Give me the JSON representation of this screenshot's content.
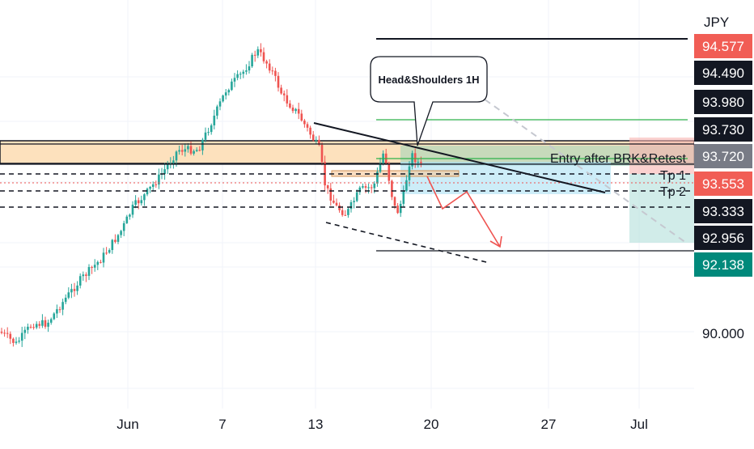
{
  "chart_data": {
    "type": "candlestick",
    "currency_label": "JPY",
    "y_axis_labels": [
      {
        "value": 94.577,
        "label": "94.577",
        "style": "red"
      },
      {
        "value": 94.49,
        "label": "94.490",
        "style": "black"
      },
      {
        "value": 93.98,
        "label": "93.980",
        "style": "black"
      },
      {
        "value": 93.73,
        "label": "93.730",
        "style": "black"
      },
      {
        "value": 93.72,
        "label": "93.720",
        "style": "gray"
      },
      {
        "value": 93.553,
        "label": "93.553",
        "style": "red"
      },
      {
        "value": 93.333,
        "label": "93.333",
        "style": "black"
      },
      {
        "value": 92.956,
        "label": "92.956",
        "style": "black"
      },
      {
        "value": 92.138,
        "label": "92.138",
        "style": "teal"
      },
      {
        "value": 90.0,
        "label": "90.000",
        "style": "plain"
      }
    ],
    "x_axis_labels": [
      "Jun",
      "7",
      "13",
      "20",
      "27",
      "Jul"
    ],
    "annotations": {
      "callout": "Head&Shoulders 1H",
      "entry": "Entry after BRK&Retest",
      "tp1": "Tp 1",
      "tp2": "Tp 2"
    },
    "colors": {
      "up": "#26a69a",
      "down": "#ef5350",
      "zone_fill": "#fde1bd",
      "zone_border": "#f0b56e",
      "label_red": "#f15d55",
      "label_black": "#131722",
      "label_gray": "#787b86",
      "label_teal": "#00897b"
    }
  }
}
